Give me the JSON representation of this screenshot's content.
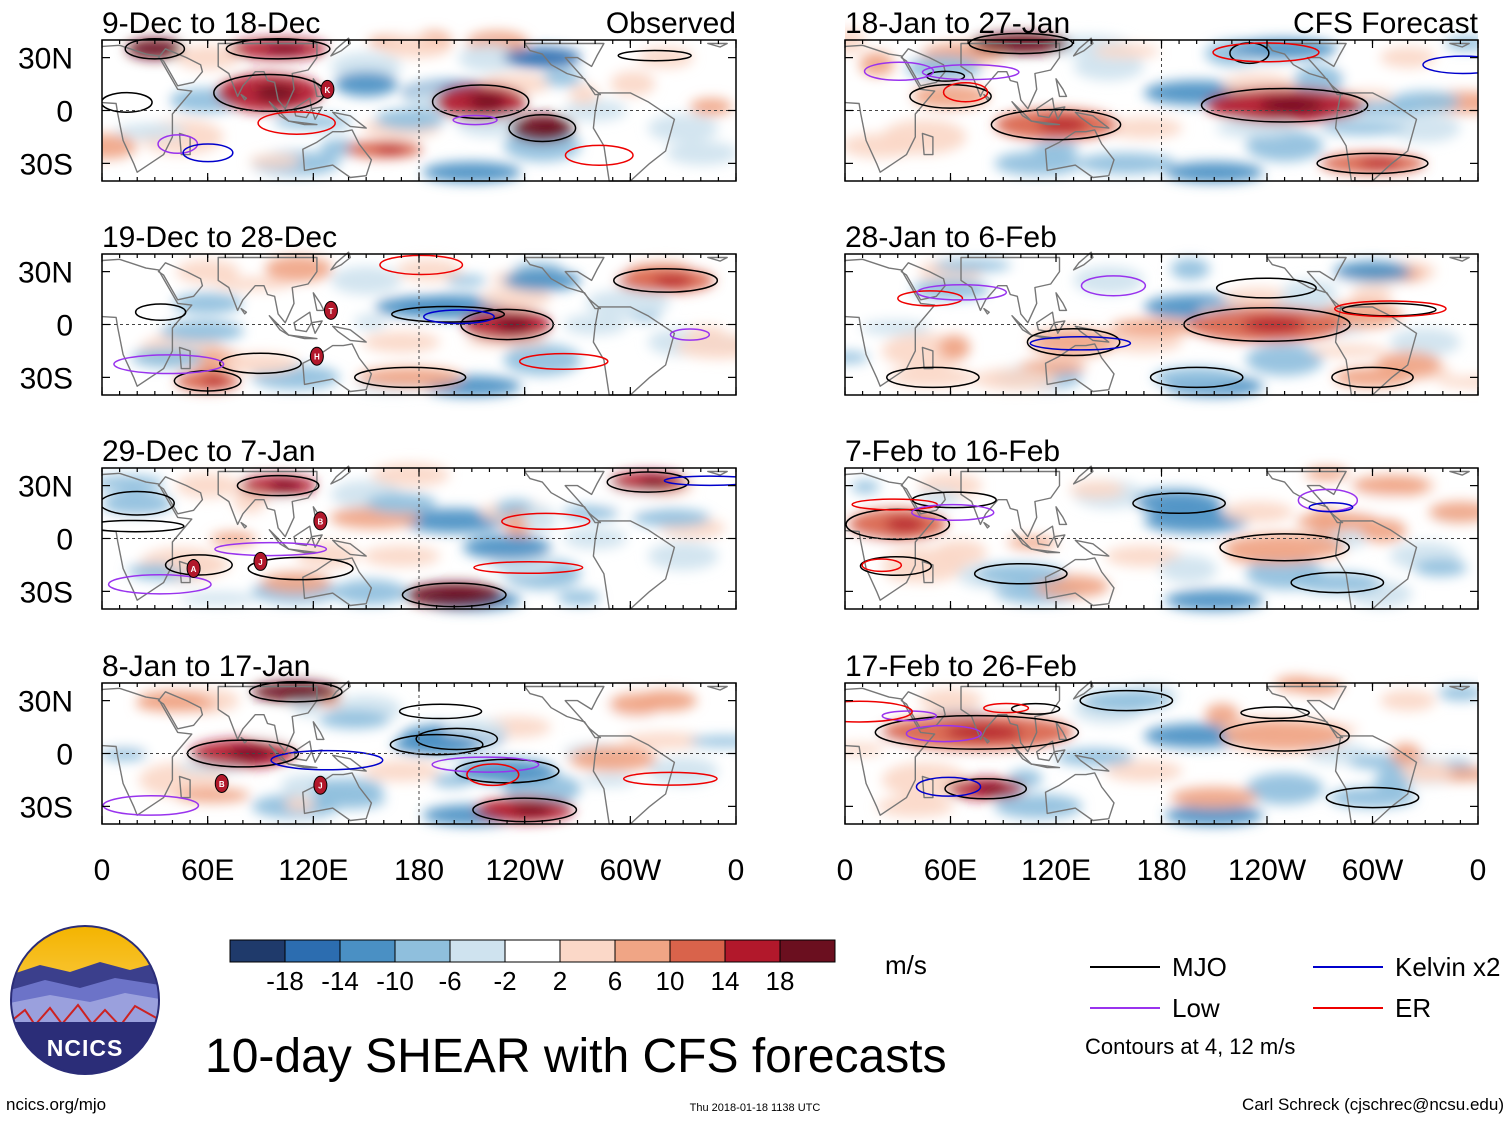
{
  "figure": {
    "title": "10-day SHEAR with CFS forecasts",
    "source_url": "ncics.org/mjo",
    "timestamp": "Thu 2018-01-18 1138 UTC",
    "author": "Carl Schreck (cjschrec@ncsu.edu)",
    "logo_text": "NCICS",
    "observed_label": "Observed",
    "forecast_label": "CFS Forecast"
  },
  "left_panels": [
    {
      "period": "9-Dec to 18-Dec"
    },
    {
      "period": "19-Dec to 28-Dec"
    },
    {
      "period": "29-Dec to 7-Jan"
    },
    {
      "period": "8-Jan to 17-Jan"
    }
  ],
  "right_panels": [
    {
      "period": "18-Jan to 27-Jan"
    },
    {
      "period": "28-Jan to 6-Feb"
    },
    {
      "period": "7-Feb to 16-Feb"
    },
    {
      "period": "17-Feb to 26-Feb"
    }
  ],
  "axes": {
    "lat_labels": [
      "30N",
      "0",
      "30S"
    ],
    "lon_labels": [
      "0",
      "60E",
      "120E",
      "180",
      "120W",
      "60W",
      "0"
    ]
  },
  "colorbar": {
    "unit": "m/s",
    "tick_labels": [
      "-18",
      "-14",
      "-10",
      "-6",
      "-2",
      "2",
      "6",
      "10",
      "14",
      "18"
    ],
    "colors": [
      "#1f3a6b",
      "#2c6db0",
      "#4a90c4",
      "#8fbfdd",
      "#cfe3ef",
      "#ffffff",
      "#fbd8c8",
      "#f0a585",
      "#d9634b",
      "#b2182b",
      "#6b0f1f"
    ]
  },
  "legend": {
    "items": [
      {
        "label": "MJO",
        "color": "#000000"
      },
      {
        "label": "Kelvin x2",
        "color": "#0000cc"
      },
      {
        "label": "Low",
        "color": "#9933ee"
      },
      {
        "label": "ER",
        "color": "#ee0000"
      }
    ],
    "note": "Contours at 4, 12 m/s"
  },
  "storm_markers": [
    {
      "panel": 0,
      "lon": 128,
      "lat": 12,
      "letter": "K"
    },
    {
      "panel": 1,
      "lon": 130,
      "lat": 8,
      "letter": "T"
    },
    {
      "panel": 1,
      "lon": 122,
      "lat": -18,
      "letter": "H"
    },
    {
      "panel": 2,
      "lon": 124,
      "lat": 10,
      "letter": "B"
    },
    {
      "panel": 2,
      "lon": 90,
      "lat": -13,
      "letter": "J"
    },
    {
      "panel": 2,
      "lon": 52,
      "lat": -17,
      "letter": "A"
    },
    {
      "panel": 3,
      "lon": 68,
      "lat": -17,
      "letter": "B"
    },
    {
      "panel": 3,
      "lon": 124,
      "lat": -18,
      "letter": "J"
    }
  ]
}
